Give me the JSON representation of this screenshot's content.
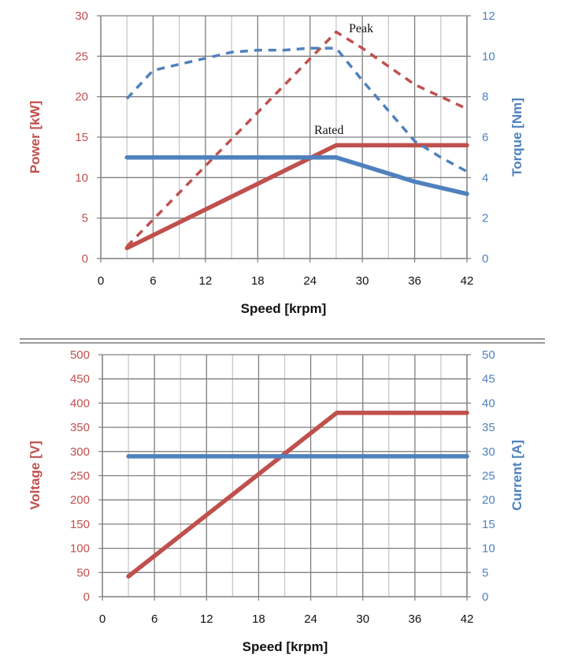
{
  "colors": {
    "red": "#c0504d",
    "blue": "#4f81bd",
    "grid": "#7f7f7f",
    "minor_grid": "#c8c8c8",
    "divider": "#999999",
    "text": "#111111"
  },
  "chart_data": [
    {
      "type": "line",
      "xlabel": "Speed [krpm]",
      "ylabel": "Power [kW]",
      "y2label": "Torque [Nm]",
      "xlim": [
        0,
        42
      ],
      "xticks": [
        0,
        6,
        12,
        18,
        24,
        30,
        36,
        42
      ],
      "ylim": [
        0,
        30
      ],
      "yticks": [
        0,
        5,
        10,
        15,
        20,
        25,
        30
      ],
      "y2lim": [
        0,
        12
      ],
      "y2ticks": [
        0,
        2,
        4,
        6,
        8,
        10,
        12
      ],
      "grid": true,
      "annotations": [
        {
          "text": "Peak",
          "x": 28.5,
          "y": 28.6
        },
        {
          "text": "Rated",
          "x": 25.5,
          "y": 15.8
        }
      ],
      "series": [
        {
          "axis": "left",
          "color": "#c0504d",
          "style": "dashed",
          "x": [
            3,
            27,
            30,
            36,
            42
          ],
          "y": [
            1.5,
            28,
            26,
            21.5,
            18.5
          ]
        },
        {
          "axis": "left",
          "color": "#c0504d",
          "style": "solid",
          "x": [
            3,
            27,
            36,
            42
          ],
          "y": [
            1.3,
            14,
            14,
            14
          ]
        },
        {
          "axis": "right",
          "color": "#4f81bd",
          "style": "dashed",
          "x": [
            3,
            6,
            9,
            12,
            15,
            18,
            21,
            24,
            27,
            30,
            33,
            36,
            39,
            42
          ],
          "y": [
            7.9,
            9.3,
            9.6,
            9.9,
            10.2,
            10.3,
            10.3,
            10.4,
            10.4,
            8.8,
            7.3,
            5.8,
            5.0,
            4.3
          ]
        },
        {
          "axis": "right",
          "color": "#4f81bd",
          "style": "solid",
          "x": [
            3,
            24,
            27,
            30,
            36,
            42
          ],
          "y": [
            5.0,
            5.0,
            5.0,
            4.6,
            3.8,
            3.2
          ]
        }
      ]
    },
    {
      "type": "line",
      "xlabel": "Speed [krpm]",
      "ylabel": "Voltage [V]",
      "y2label": "Current [A]",
      "xlim": [
        0,
        42
      ],
      "xticks": [
        0,
        6,
        12,
        18,
        24,
        30,
        36,
        42
      ],
      "ylim": [
        0,
        500
      ],
      "yticks": [
        0,
        50,
        100,
        150,
        200,
        250,
        300,
        350,
        400,
        450,
        500
      ],
      "y2lim": [
        0,
        50
      ],
      "y2ticks": [
        0,
        5,
        10,
        15,
        20,
        25,
        30,
        35,
        40,
        45,
        50
      ],
      "grid": true,
      "series": [
        {
          "axis": "left",
          "color": "#c0504d",
          "style": "solid",
          "x": [
            3,
            27,
            42
          ],
          "y": [
            42,
            380,
            380
          ]
        },
        {
          "axis": "right",
          "color": "#4f81bd",
          "style": "solid",
          "x": [
            3,
            42
          ],
          "y": [
            29,
            29
          ]
        }
      ]
    }
  ]
}
